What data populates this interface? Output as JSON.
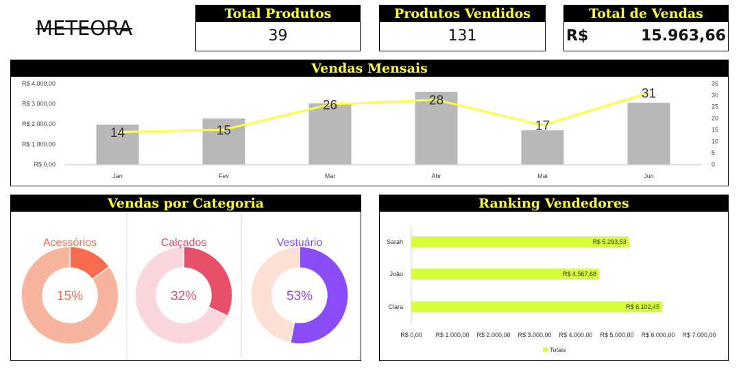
{
  "logo": "METEORA",
  "kpis": [
    {
      "title": "Total Produtos",
      "value": "39"
    },
    {
      "title": "Produtos Vendidos",
      "value": "131"
    },
    {
      "title": "Total de Vendas",
      "currency": "R$",
      "value": "15.963,66"
    }
  ],
  "monthly": {
    "title": "Vendas Mensais"
  },
  "category": {
    "title": "Vendas por Categoria"
  },
  "ranking": {
    "title": "Ranking Vendedores"
  },
  "chart_data": [
    {
      "type": "bar+line",
      "categories": [
        "Jan",
        "Fev",
        "Mar",
        "Abr",
        "Mai",
        "Jun"
      ],
      "series": [
        {
          "type": "bar",
          "values": [
            1970,
            2270,
            3020,
            3590,
            1690,
            3050
          ],
          "color": "#b8b8b8",
          "axis": "left"
        },
        {
          "type": "line",
          "values": [
            14,
            15,
            26,
            28,
            17,
            31
          ],
          "color": "#ffff3a",
          "axis": "right",
          "data_labels": [
            "14",
            "15",
            "26",
            "28",
            "17",
            "31"
          ]
        }
      ],
      "ylim": [
        0,
        4000
      ],
      "yticks": [
        "R$ 0,00",
        "R$ 1.000,00",
        "R$ 2.000,00",
        "R$ 3.000,00",
        "R$ 4.000,00"
      ],
      "y2lim": [
        0,
        35
      ],
      "y2ticks": [
        "0",
        "5",
        "10",
        "15",
        "20",
        "25",
        "30",
        "35"
      ]
    },
    {
      "type": "pie",
      "donuts": [
        {
          "name": "Acessórios",
          "value": 15,
          "label": "15%",
          "color": "#f76c4c",
          "rest": "#f7b5a0"
        },
        {
          "name": "Calçados",
          "value": 32,
          "label": "32%",
          "color": "#e8506a",
          "rest": "#fad6dd"
        },
        {
          "name": "Vestuário",
          "value": 53,
          "label": "53%",
          "color": "#8a4cf7",
          "rest": "#fce0d6"
        }
      ]
    },
    {
      "type": "bar",
      "orientation": "horizontal",
      "categories": [
        "Sarah",
        "João",
        "Clara"
      ],
      "series": [
        {
          "name": "Totais",
          "values": [
            5293.53,
            4567.68,
            6102.45
          ],
          "labels": [
            "R$ 5.293,53",
            "R$ 4.567,68",
            "R$ 6.102,45"
          ],
          "color": "#d6ff3a"
        }
      ],
      "xlim": [
        0,
        7000
      ],
      "xticks": [
        "R$ 0,00",
        "R$ 1.000,00",
        "R$ 2.000,00",
        "R$ 3.000,00",
        "R$ 4.000,00",
        "R$ 5.000,00",
        "R$ 6.000,00",
        "R$ 7.000,00"
      ],
      "legend": "bottom"
    }
  ]
}
